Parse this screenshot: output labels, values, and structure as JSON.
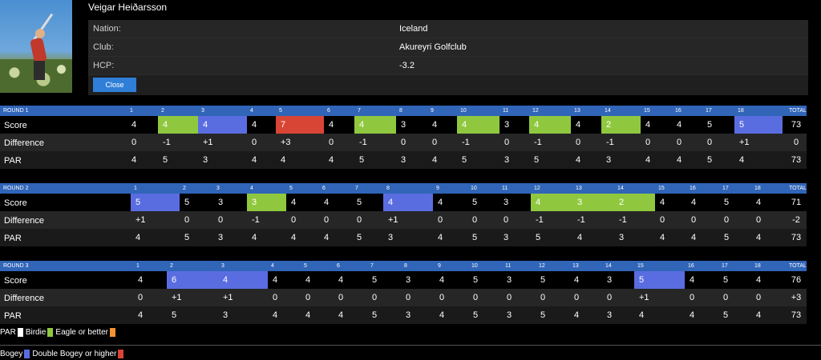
{
  "player": {
    "name": "Veigar Heiðarsson",
    "nation_label": "Nation:",
    "nation": "Iceland",
    "club_label": "Club:",
    "club": "Akureyri Golfclub",
    "hcp_label": "HCP:",
    "hcp": "-3.2",
    "close_label": "Close"
  },
  "row_labels": {
    "score": "Score",
    "difference": "Difference",
    "par": "PAR"
  },
  "total_label": "TOTAL",
  "colors": {
    "birdie": "#8fc83e",
    "eagle": "#f39233",
    "bogey": "#5a6de0",
    "double_bogey": "#d94535",
    "par": "#ffffff"
  },
  "rounds": [
    {
      "title": "ROUND 1",
      "holes": [
        "1",
        "2",
        "3",
        "4",
        "5",
        "6",
        "7",
        "8",
        "9",
        "10",
        "11",
        "12",
        "13",
        "14",
        "15",
        "16",
        "17",
        "18"
      ],
      "score": [
        "4",
        "4",
        "4",
        "4",
        "7",
        "4",
        "4",
        "3",
        "4",
        "4",
        "3",
        "4",
        "4",
        "2",
        "4",
        "4",
        "5",
        "5"
      ],
      "diff": [
        "0",
        "-1",
        "+1",
        "0",
        "+3",
        "0",
        "-1",
        "0",
        "0",
        "-1",
        "0",
        "-1",
        "0",
        "-1",
        "0",
        "0",
        "0",
        "+1"
      ],
      "par": [
        "4",
        "5",
        "3",
        "4",
        "4",
        "4",
        "5",
        "3",
        "4",
        "5",
        "3",
        "5",
        "4",
        "3",
        "4",
        "4",
        "5",
        "4"
      ],
      "types": [
        "par",
        "birdie",
        "bogey",
        "par",
        "double",
        "par",
        "birdie",
        "par",
        "par",
        "birdie",
        "par",
        "birdie",
        "par",
        "birdie",
        "par",
        "par",
        "par",
        "bogey"
      ],
      "total_score": "73",
      "total_diff": "0",
      "total_par": "73"
    },
    {
      "title": "ROUND 2",
      "holes": [
        "1",
        "2",
        "3",
        "4",
        "5",
        "6",
        "7",
        "8",
        "9",
        "10",
        "11",
        "12",
        "13",
        "14",
        "15",
        "16",
        "17",
        "18"
      ],
      "score": [
        "5",
        "5",
        "3",
        "3",
        "4",
        "4",
        "5",
        "4",
        "4",
        "5",
        "3",
        "4",
        "3",
        "2",
        "4",
        "4",
        "5",
        "4"
      ],
      "diff": [
        "+1",
        "0",
        "0",
        "-1",
        "0",
        "0",
        "0",
        "+1",
        "0",
        "0",
        "0",
        "-1",
        "-1",
        "-1",
        "0",
        "0",
        "0",
        "0"
      ],
      "par": [
        "4",
        "5",
        "3",
        "4",
        "4",
        "4",
        "5",
        "3",
        "4",
        "5",
        "3",
        "5",
        "4",
        "3",
        "4",
        "4",
        "5",
        "4"
      ],
      "types": [
        "bogey",
        "par",
        "par",
        "birdie",
        "par",
        "par",
        "par",
        "bogey",
        "par",
        "par",
        "par",
        "birdie",
        "birdie",
        "birdie",
        "par",
        "par",
        "par",
        "par"
      ],
      "total_score": "71",
      "total_diff": "-2",
      "total_par": "73"
    },
    {
      "title": "ROUND 3",
      "holes": [
        "1",
        "2",
        "3",
        "4",
        "5",
        "6",
        "7",
        "8",
        "9",
        "10",
        "11",
        "12",
        "13",
        "14",
        "15",
        "16",
        "17",
        "18"
      ],
      "score": [
        "4",
        "6",
        "4",
        "4",
        "4",
        "4",
        "5",
        "3",
        "4",
        "5",
        "3",
        "5",
        "4",
        "3",
        "5",
        "4",
        "5",
        "4"
      ],
      "diff": [
        "0",
        "+1",
        "+1",
        "0",
        "0",
        "0",
        "0",
        "0",
        "0",
        "0",
        "0",
        "0",
        "0",
        "0",
        "+1",
        "0",
        "0",
        "0"
      ],
      "par": [
        "4",
        "5",
        "3",
        "4",
        "4",
        "4",
        "5",
        "3",
        "4",
        "5",
        "3",
        "5",
        "4",
        "3",
        "4",
        "4",
        "5",
        "4"
      ],
      "types": [
        "par",
        "bogey",
        "bogey",
        "par",
        "par",
        "par",
        "par",
        "par",
        "par",
        "par",
        "par",
        "par",
        "par",
        "par",
        "bogey",
        "par",
        "par",
        "par"
      ],
      "total_score": "76",
      "total_diff": "+3",
      "total_par": "73"
    }
  ],
  "legend": {
    "par": "PAR",
    "birdie": "Birdie",
    "eagle": "Eagle or better",
    "bogey": "Bogey",
    "double_bogey": "Double Bogey or higher"
  }
}
